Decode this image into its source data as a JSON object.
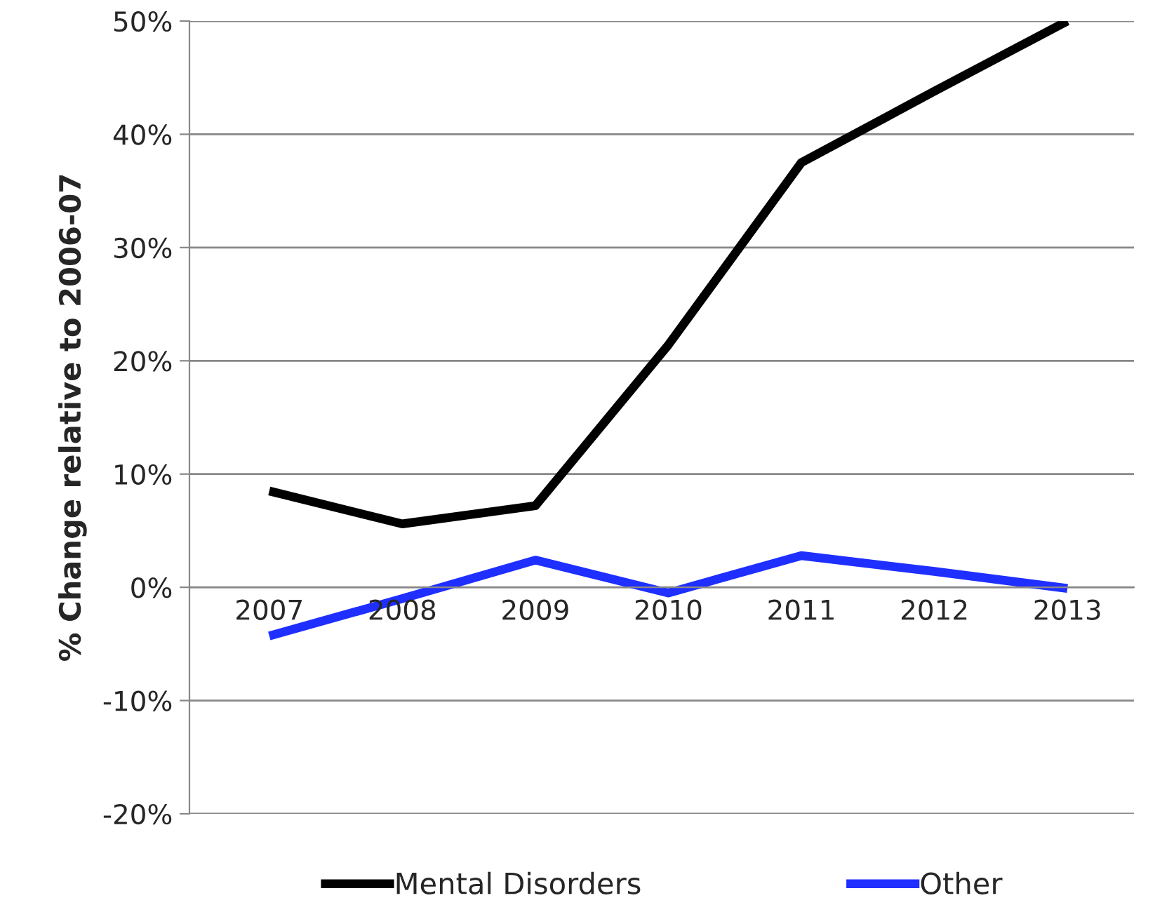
{
  "chart_data": {
    "type": "line",
    "ylabel": "% Change relative to 2006-07",
    "categories": [
      "2007",
      "2008",
      "2009",
      "2010",
      "2011",
      "2012",
      "2013"
    ],
    "series": [
      {
        "name": "Mental Disorders",
        "color": "#000000",
        "values": [
          8.5,
          5.6,
          7.2,
          21.4,
          37.5,
          43.8,
          50
        ]
      },
      {
        "name": "Other",
        "color": "#1f2fff",
        "values": [
          -4.3,
          -1.0,
          2.4,
          -0.5,
          2.8,
          1.4,
          -0.1
        ]
      }
    ],
    "ylim": [
      -20,
      50
    ],
    "yticks": [
      {
        "value": -20,
        "label": "-20%"
      },
      {
        "value": -10,
        "label": "-10%"
      },
      {
        "value": 0,
        "label": "0%"
      },
      {
        "value": 10,
        "label": "10%"
      },
      {
        "value": 20,
        "label": "20%"
      },
      {
        "value": 30,
        "label": "30%"
      },
      {
        "value": 40,
        "label": "40%"
      },
      {
        "value": 50,
        "label": "50%"
      }
    ],
    "grid": "y",
    "legend": "bottom",
    "marker": "none",
    "line_style": "solid"
  }
}
